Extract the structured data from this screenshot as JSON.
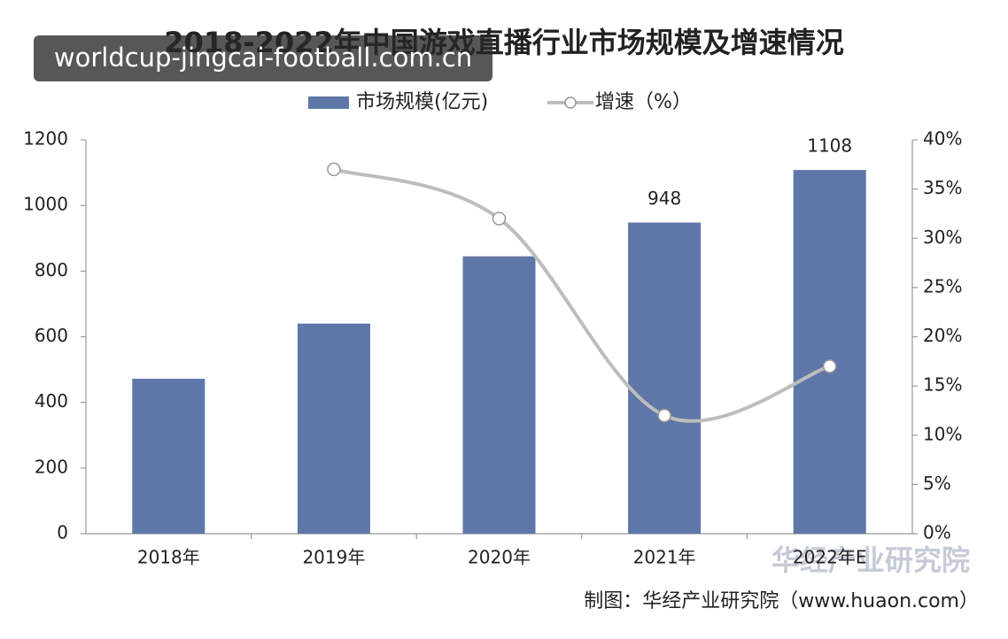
{
  "chart_data": {
    "type": "combo",
    "title": "2018-2022年中国游戏直播行业市场规模及增速情况",
    "categories": [
      "2018年",
      "2019年",
      "2020年",
      "2021年",
      "2022年E"
    ],
    "series": [
      {
        "name": "市场规模(亿元)",
        "type": "bar",
        "color": "#5f77a8",
        "values": [
          472,
          640,
          845,
          948,
          1108
        ],
        "value_labels": [
          null,
          null,
          null,
          "948",
          "1108"
        ]
      },
      {
        "name": "增速（%）",
        "type": "line",
        "axis": "y2",
        "color": "#bdbdbd",
        "values": [
          null,
          37,
          32,
          12,
          17
        ]
      }
    ],
    "ylim": [
      0,
      1200
    ],
    "yticks": [
      0,
      200,
      400,
      600,
      800,
      1000,
      1200
    ],
    "y2lim": [
      0,
      40
    ],
    "y2ticks": [
      {
        "value": 0,
        "label": "0%"
      },
      {
        "value": 5,
        "label": "5%"
      },
      {
        "value": 10,
        "label": "10%"
      },
      {
        "value": 15,
        "label": "15%"
      },
      {
        "value": 20,
        "label": "20%"
      },
      {
        "value": 25,
        "label": "25%"
      },
      {
        "value": 30,
        "label": "30%"
      },
      {
        "value": 35,
        "label": "35%"
      },
      {
        "value": 40,
        "label": "40%"
      }
    ],
    "legend": "top",
    "source": "制图：华经产业研究院（www.huaon.com）",
    "watermark": "worldcup-jingcai-football.com.cn",
    "logo": "华经产业研究院"
  }
}
